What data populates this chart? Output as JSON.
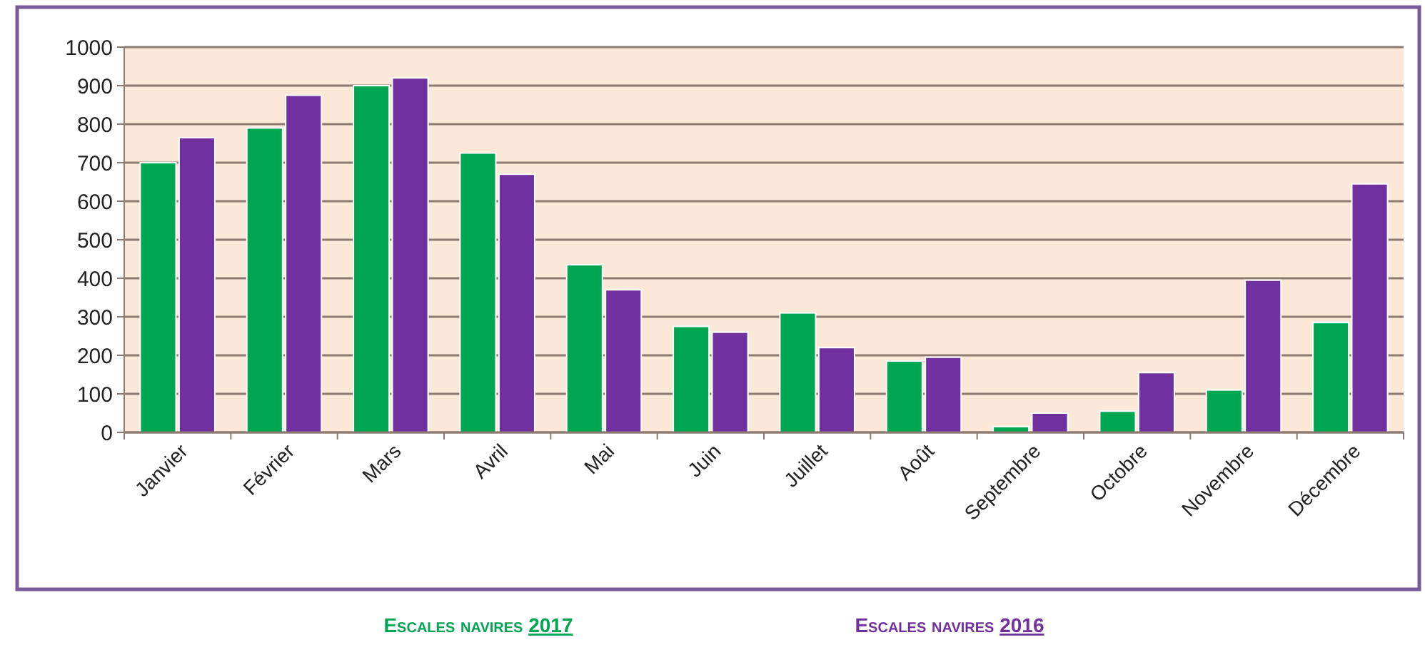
{
  "chart_data": {
    "type": "bar",
    "categories": [
      "Janvier",
      "Février",
      "Mars",
      "Avril",
      "Mai",
      "Juin",
      "Juillet",
      "Août",
      "Septembre",
      "Octobre",
      "Novembre",
      "Décembre"
    ],
    "series": [
      {
        "name": "Escales navires 2017",
        "color": "#00a651",
        "values": [
          700,
          790,
          900,
          725,
          435,
          275,
          310,
          185,
          15,
          55,
          110,
          285
        ]
      },
      {
        "name": "Escales navires 2016",
        "color": "#7030a0",
        "values": [
          765,
          875,
          920,
          670,
          370,
          260,
          220,
          195,
          50,
          155,
          395,
          645
        ]
      }
    ],
    "ylim": [
      0,
      1000
    ],
    "yticks": [
      0,
      100,
      200,
      300,
      400,
      500,
      600,
      700,
      800,
      900,
      1000
    ],
    "grid": "y",
    "legend": "bottom"
  }
}
